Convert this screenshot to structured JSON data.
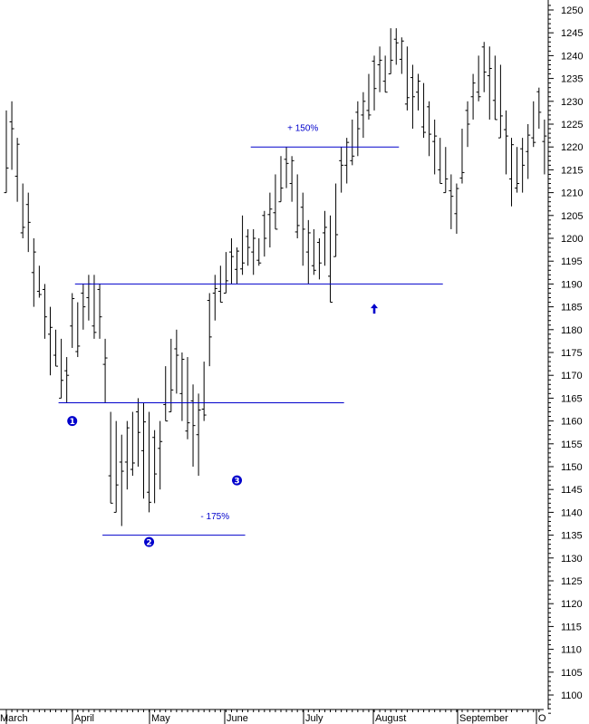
{
  "chart_data": {
    "type": "ohlc",
    "y_axis": {
      "side": "right",
      "ylim": [
        1096,
        1251
      ],
      "tick_step": 5,
      "tick_labels": [
        "1100",
        "1105",
        "1110",
        "1115",
        "1120",
        "1125",
        "1130",
        "1135",
        "1140",
        "1145",
        "1150",
        "1155",
        "1160",
        "1165",
        "1170",
        "1175",
        "1180",
        "1185",
        "1190",
        "1195",
        "1200",
        "1205",
        "1210",
        "1215",
        "1220",
        "1225",
        "1230",
        "1235",
        "1240",
        "1245",
        "1250"
      ]
    },
    "x_axis": {
      "months": [
        "March",
        "April",
        "May",
        "June",
        "July",
        "August",
        "September",
        "O"
      ]
    },
    "series": [
      {
        "values": [
          [
            1228,
            1210
          ],
          [
            1230,
            1215
          ],
          [
            1222,
            1208
          ],
          [
            1212,
            1200
          ],
          [
            1210,
            1197
          ],
          [
            1200,
            1185
          ],
          [
            1194,
            1187
          ],
          [
            1190,
            1178
          ],
          [
            1185,
            1170
          ],
          [
            1180,
            1172
          ],
          [
            1178,
            1165
          ],
          [
            1174,
            1164
          ],
          [
            1188,
            1176
          ],
          [
            1186,
            1174
          ],
          [
            1190,
            1180
          ],
          [
            1192,
            1182
          ],
          [
            1192,
            1178
          ],
          [
            1190,
            1178
          ],
          [
            1178,
            1164
          ],
          [
            1162,
            1142
          ],
          [
            1160,
            1140
          ],
          [
            1157,
            1137
          ],
          [
            1160,
            1145
          ],
          [
            1162,
            1148
          ],
          [
            1165,
            1150
          ],
          [
            1164,
            1143
          ],
          [
            1162,
            1140
          ],
          [
            1158,
            1142
          ],
          [
            1160,
            1145
          ],
          [
            1172,
            1160
          ],
          [
            1178,
            1162
          ],
          [
            1180,
            1166
          ],
          [
            1175,
            1160
          ],
          [
            1174,
            1156
          ],
          [
            1168,
            1150
          ],
          [
            1166,
            1148
          ],
          [
            1173,
            1160
          ],
          [
            1188,
            1172
          ],
          [
            1192,
            1182
          ],
          [
            1194,
            1186
          ],
          [
            1197,
            1188
          ],
          [
            1200,
            1190
          ],
          [
            1198,
            1190
          ],
          [
            1205,
            1192
          ],
          [
            1202,
            1194
          ],
          [
            1202,
            1192
          ],
          [
            1200,
            1194
          ],
          [
            1206,
            1196
          ],
          [
            1210,
            1198
          ],
          [
            1214,
            1202
          ],
          [
            1218,
            1208
          ],
          [
            1220,
            1211
          ],
          [
            1218,
            1208
          ],
          [
            1214,
            1200
          ],
          [
            1210,
            1194
          ],
          [
            1204,
            1190
          ],
          [
            1202,
            1192
          ],
          [
            1200,
            1191
          ],
          [
            1206,
            1194
          ],
          [
            1205,
            1186
          ],
          [
            1212,
            1196
          ],
          [
            1220,
            1210
          ],
          [
            1222,
            1212
          ],
          [
            1226,
            1216
          ],
          [
            1230,
            1218
          ],
          [
            1232,
            1222
          ],
          [
            1236,
            1226
          ],
          [
            1240,
            1228
          ],
          [
            1242,
            1232
          ],
          [
            1240,
            1232
          ],
          [
            1246,
            1236
          ],
          [
            1246,
            1238
          ],
          [
            1244,
            1236
          ],
          [
            1242,
            1228
          ],
          [
            1238,
            1224
          ],
          [
            1236,
            1228
          ],
          [
            1234,
            1222
          ],
          [
            1230,
            1218
          ],
          [
            1226,
            1214
          ],
          [
            1222,
            1212
          ],
          [
            1220,
            1210
          ],
          [
            1214,
            1202
          ],
          [
            1212,
            1201
          ],
          [
            1224,
            1212
          ],
          [
            1230,
            1220
          ],
          [
            1236,
            1226
          ],
          [
            1240,
            1230
          ],
          [
            1243,
            1232
          ],
          [
            1242,
            1226
          ],
          [
            1240,
            1226
          ],
          [
            1238,
            1222
          ],
          [
            1228,
            1214
          ],
          [
            1222,
            1207
          ],
          [
            1220,
            1210
          ],
          [
            1222,
            1210
          ],
          [
            1225,
            1213
          ],
          [
            1230,
            1220
          ],
          [
            1233,
            1224
          ],
          [
            1226,
            1214
          ]
        ]
      }
    ],
    "annotations": {
      "lines": [
        {
          "name": "support-line",
          "y": 1164,
          "x_start_bar": 10,
          "x_end_bar": 61
        },
        {
          "name": "neckline",
          "y": 1190,
          "x_start_bar": 13,
          "x_end_bar": 79
        },
        {
          "name": "low-line",
          "y": 1135,
          "x_start_bar": 18,
          "x_end_bar": 43
        },
        {
          "name": "target-line",
          "y": 1220,
          "x_start_bar": 45,
          "x_end_bar": 71
        }
      ],
      "labels": [
        {
          "name": "label-plus-150",
          "text": "+ 150%",
          "y": 1223.5,
          "x_bar": 54
        },
        {
          "name": "label-minus-175",
          "text": "- 175%",
          "y": 1138.5,
          "x_bar": 38
        }
      ],
      "markers": [
        {
          "name": "marker-1",
          "text": "1",
          "y": 1160,
          "x_bar": 12
        },
        {
          "name": "marker-2",
          "text": "2",
          "y": 1133.5,
          "x_bar": 26
        },
        {
          "name": "marker-3",
          "text": "3",
          "y": 1147,
          "x_bar": 42
        }
      ],
      "arrow": {
        "name": "up-arrow",
        "y": 1184.5,
        "x_bar": 67
      }
    },
    "colors": {
      "bars": "#000000",
      "annotation": "#0000cc",
      "axis": "#000000"
    }
  }
}
